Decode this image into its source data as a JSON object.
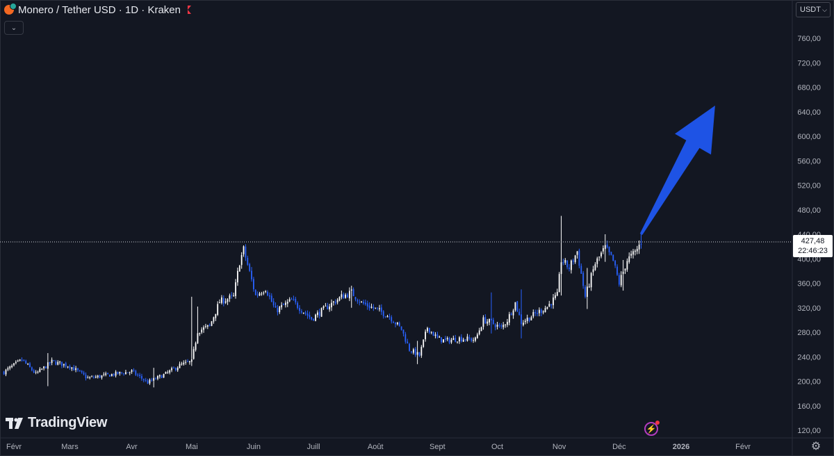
{
  "header": {
    "symbol_title": "Monero / Tether USD · 1D · Kraken",
    "currency": "USDT"
  },
  "price_label": {
    "price": "427,48",
    "countdown": "22:46:23"
  },
  "logo_text": "TradingView",
  "colors": {
    "background": "#131722",
    "up": "#ffffff",
    "down": "#2962ff",
    "axis_text": "#b2b5be",
    "arrow": "#1e53e5"
  },
  "chart_data": {
    "type": "candlestick",
    "symbol": "Monero / Tether USD",
    "interval": "1D",
    "exchange": "Kraken",
    "last_price": 427.48,
    "ylim": [
      105,
      790
    ],
    "y_ticks": [
      120,
      160,
      200,
      240,
      280,
      320,
      360,
      400,
      440,
      480,
      520,
      560,
      600,
      640,
      680,
      720,
      760
    ],
    "y_tick_labels": [
      "120,00",
      "160,00",
      "200,00",
      "240,00",
      "280,00",
      "320,00",
      "360,00",
      "400,00",
      "440,00",
      "480,00",
      "520,00",
      "560,00",
      "600,00",
      "640,00",
      "680,00",
      "720,00",
      "760,00"
    ],
    "x_labels": [
      "Févr",
      "Mars",
      "Avr",
      "Mai",
      "Juin",
      "Juill",
      "Août",
      "Sept",
      "Oct",
      "Nov",
      "Déc",
      "2026",
      "Févr"
    ],
    "x_label_bold": [
      false,
      false,
      false,
      false,
      false,
      false,
      false,
      false,
      false,
      false,
      false,
      true,
      false
    ],
    "date_range": [
      "2025-01-27",
      "2025-12-12"
    ],
    "close_path": [
      [
        "2025-01-27",
        215
      ],
      [
        "2025-02-05",
        235
      ],
      [
        "2025-02-12",
        212
      ],
      [
        "2025-02-20",
        232
      ],
      [
        "2025-03-01",
        225
      ],
      [
        "2025-03-10",
        205
      ],
      [
        "2025-03-20",
        210
      ],
      [
        "2025-04-01",
        216
      ],
      [
        "2025-04-09",
        198
      ],
      [
        "2025-04-18",
        212
      ],
      [
        "2025-04-25",
        226
      ],
      [
        "2025-05-01",
        232
      ],
      [
        "2025-05-04",
        282
      ],
      [
        "2025-05-10",
        290
      ],
      [
        "2025-05-15",
        330
      ],
      [
        "2025-05-22",
        338
      ],
      [
        "2025-05-25",
        395
      ],
      [
        "2025-05-27",
        415
      ],
      [
        "2025-05-29",
        390
      ],
      [
        "2025-06-02",
        340
      ],
      [
        "2025-06-07",
        352
      ],
      [
        "2025-06-12",
        315
      ],
      [
        "2025-06-20",
        332
      ],
      [
        "2025-06-30",
        302
      ],
      [
        "2025-07-08",
        322
      ],
      [
        "2025-07-15",
        338
      ],
      [
        "2025-07-20",
        345
      ],
      [
        "2025-07-25",
        328
      ],
      [
        "2025-08-01",
        318
      ],
      [
        "2025-08-08",
        306
      ],
      [
        "2025-08-14",
        285
      ],
      [
        "2025-08-18",
        252
      ],
      [
        "2025-08-23",
        242
      ],
      [
        "2025-08-27",
        288
      ],
      [
        "2025-09-01",
        270
      ],
      [
        "2025-09-05",
        266
      ],
      [
        "2025-09-12",
        270
      ],
      [
        "2025-09-20",
        268
      ],
      [
        "2025-09-24",
        300
      ],
      [
        "2025-09-28",
        296
      ],
      [
        "2025-10-03",
        287
      ],
      [
        "2025-10-06",
        300
      ],
      [
        "2025-10-10",
        328
      ],
      [
        "2025-10-13",
        296
      ],
      [
        "2025-10-20",
        310
      ],
      [
        "2025-10-26",
        322
      ],
      [
        "2025-10-31",
        340
      ],
      [
        "2025-11-02",
        398
      ],
      [
        "2025-11-06",
        385
      ],
      [
        "2025-11-10",
        412
      ],
      [
        "2025-11-14",
        338
      ],
      [
        "2025-11-19",
        392
      ],
      [
        "2025-11-24",
        418
      ],
      [
        "2025-11-28",
        396
      ],
      [
        "2025-12-01",
        360
      ],
      [
        "2025-12-05",
        398
      ],
      [
        "2025-12-09",
        410
      ],
      [
        "2025-12-12",
        427.48
      ]
    ],
    "wick_spikes": [
      [
        "2025-02-18",
        192,
        246
      ],
      [
        "2025-04-12",
        190,
        222
      ],
      [
        "2025-05-01",
        225,
        338
      ],
      [
        "2025-05-04",
        262,
        322
      ],
      [
        "2025-07-20",
        320,
        356
      ],
      [
        "2025-08-22",
        228,
        266
      ],
      [
        "2025-09-28",
        278,
        345
      ],
      [
        "2025-10-13",
        270,
        350
      ],
      [
        "2025-11-02",
        340,
        470
      ],
      [
        "2025-11-15",
        318,
        385
      ],
      [
        "2025-11-24",
        395,
        440
      ],
      [
        "2025-12-03",
        348,
        398
      ]
    ],
    "annotation": {
      "type": "arrow",
      "color": "#1e53e5",
      "from": [
        "2025-12-12",
        440
      ],
      "to": [
        "2026-01-18",
        650
      ]
    }
  }
}
